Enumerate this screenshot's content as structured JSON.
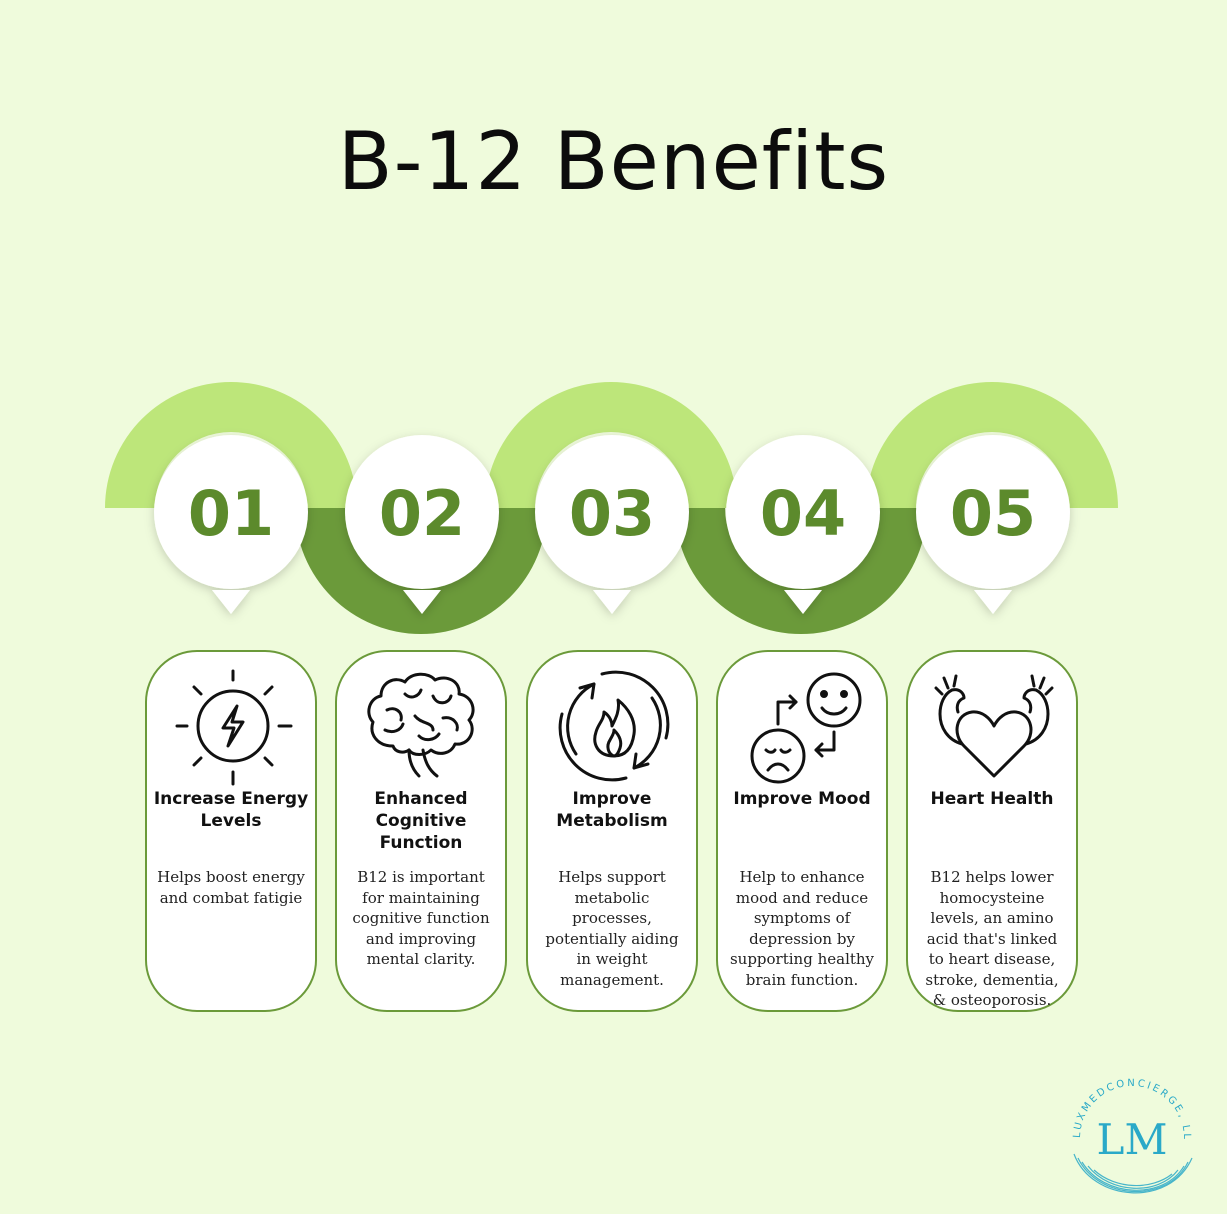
{
  "title": "B-12 Benefits",
  "colors": {
    "background": "#effbdc",
    "light_green": "#bde67a",
    "dark_green": "#6b9a3a",
    "number": "#5c8a2c",
    "logo": "#2aa9c8"
  },
  "steps": [
    {
      "number": "01",
      "icon": "energy-bolt-sun-icon",
      "heading": "Increase Energy Levels",
      "description": "Helps boost energy and combat fatigie"
    },
    {
      "number": "02",
      "icon": "brain-icon",
      "heading": "Enhanced Cognitive Function",
      "description": "B12 is important for maintaining cognitive function and improving mental clarity."
    },
    {
      "number": "03",
      "icon": "metabolism-flame-icon",
      "heading": "Improve Metabolism",
      "description": "Helps support metabolic processes, potentially aiding in weight management."
    },
    {
      "number": "04",
      "icon": "mood-faces-icon",
      "heading": "Improve Mood",
      "description": "Help to enhance mood and reduce symptoms of depression by supporting healthy brain function."
    },
    {
      "number": "05",
      "icon": "heart-muscle-icon",
      "heading": "Heart Health",
      "description": "B12 helps lower homocysteine levels, an amino acid that's linked to heart disease, stroke, dementia, & osteoporosis."
    }
  ],
  "logo": {
    "monogram": "LM",
    "ring_text": "LUXMEDCONCIERGE, LLC"
  }
}
